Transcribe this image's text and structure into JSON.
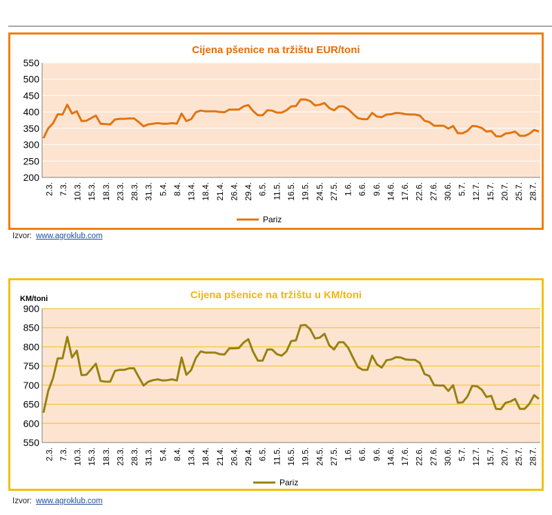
{
  "chart_data": [
    {
      "type": "line",
      "title": "Cijena pšenice na tržištu EUR/toni",
      "ylabel": "",
      "xlabel": "",
      "ylim": [
        200,
        550
      ],
      "yticks": [
        200,
        250,
        300,
        350,
        400,
        450,
        500,
        550
      ],
      "grid": true,
      "legend": "bottom-center",
      "x_tick_labels": [
        "2.3.",
        "7.3.",
        "10.3.",
        "15.3.",
        "18.3.",
        "23.3.",
        "28.3.",
        "31.3.",
        "5.4.",
        "8.4.",
        "13.4.",
        "18.4.",
        "21.4.",
        "26.4.",
        "29.4.",
        "6.5.",
        "11.5.",
        "16.5.",
        "19.5.",
        "24.5.",
        "27.5.",
        "1.6.",
        "6.6.",
        "9.6.",
        "14.6.",
        "17.6.",
        "22.6.",
        "27.6.",
        "30.6.",
        "5.7.",
        "12.7.",
        "15.7.",
        "20.7.",
        "25.7.",
        "28.7."
      ],
      "colors": {
        "line": "#e07410",
        "plot_bg": "#fde4d0",
        "border": "#f07f09",
        "title": "#e36c09",
        "grid": "#ffffff"
      },
      "series": [
        {
          "name": "Pariz",
          "values": [
            320,
            350,
            365,
            393,
            392,
            422,
            395,
            402,
            372,
            373,
            381,
            389,
            364,
            363,
            362,
            377,
            379,
            379,
            380,
            380,
            369,
            356,
            362,
            364,
            366,
            364,
            364,
            366,
            364,
            395,
            372,
            378,
            399,
            404,
            402,
            402,
            402,
            400,
            399,
            407,
            407,
            407,
            417,
            421,
            403,
            390,
            390,
            405,
            404,
            398,
            398,
            405,
            417,
            418,
            438,
            438,
            433,
            420,
            422,
            427,
            412,
            405,
            417,
            417,
            408,
            394,
            381,
            378,
            378,
            397,
            386,
            384,
            392,
            393,
            397,
            396,
            393,
            392,
            392,
            389,
            373,
            369,
            358,
            358,
            358,
            349,
            357,
            335,
            335,
            342,
            357,
            356,
            351,
            340,
            342,
            326,
            325,
            334,
            336,
            340,
            327,
            327,
            333,
            345,
            340
          ]
        }
      ]
    },
    {
      "type": "line",
      "title": "Cijena pšenice na tržištu u KM/toni",
      "ylabel": "KM/toni",
      "xlabel": "",
      "ylim": [
        550,
        900
      ],
      "yticks": [
        550,
        600,
        650,
        700,
        750,
        800,
        850,
        900
      ],
      "grid": true,
      "legend": "bottom-center",
      "x_tick_labels": [
        "2.3.",
        "7.3.",
        "10.3.",
        "15.3.",
        "18.3.",
        "23.3.",
        "28.3.",
        "31.3.",
        "5.4.",
        "8.4.",
        "13.4.",
        "18.4.",
        "21.4.",
        "26.4.",
        "29.4.",
        "6.5.",
        "11.5.",
        "16.5.",
        "19.5.",
        "24.5.",
        "27.5.",
        "1.6.",
        "6.6.",
        "9.6.",
        "14.6.",
        "17.6.",
        "22.6.",
        "27.6.",
        "30.6.",
        "5.7.",
        "12.7.",
        "15.7.",
        "20.7.",
        "25.7.",
        "28.7."
      ],
      "colors": {
        "line": "#978010",
        "plot_bg": "#fde4d0",
        "border": "#f3c10e",
        "title": "#f2b70c",
        "grid": "#f2c10d"
      },
      "series": [
        {
          "name": "Pariz",
          "values": [
            628,
            685,
            718,
            770,
            770,
            826,
            772,
            790,
            726,
            727,
            741,
            756,
            711,
            709,
            709,
            737,
            740,
            740,
            744,
            744,
            721,
            699,
            709,
            713,
            715,
            712,
            713,
            715,
            712,
            772,
            727,
            739,
            771,
            788,
            785,
            785,
            785,
            781,
            780,
            796,
            796,
            797,
            811,
            820,
            787,
            764,
            764,
            793,
            793,
            781,
            777,
            788,
            815,
            817,
            856,
            857,
            846,
            822,
            824,
            834,
            804,
            793,
            812,
            812,
            797,
            771,
            747,
            740,
            740,
            777,
            754,
            746,
            765,
            767,
            773,
            772,
            767,
            766,
            766,
            758,
            729,
            724,
            700,
            699,
            699,
            685,
            700,
            654,
            655,
            670,
            698,
            697,
            688,
            669,
            672,
            638,
            637,
            654,
            657,
            664,
            638,
            638,
            651,
            674,
            664
          ]
        }
      ]
    }
  ],
  "sources": [
    {
      "label": "Izvor:",
      "link": "www.agroklub.com"
    },
    {
      "label": "Izvor:",
      "link": "www.agroklub.com"
    }
  ]
}
